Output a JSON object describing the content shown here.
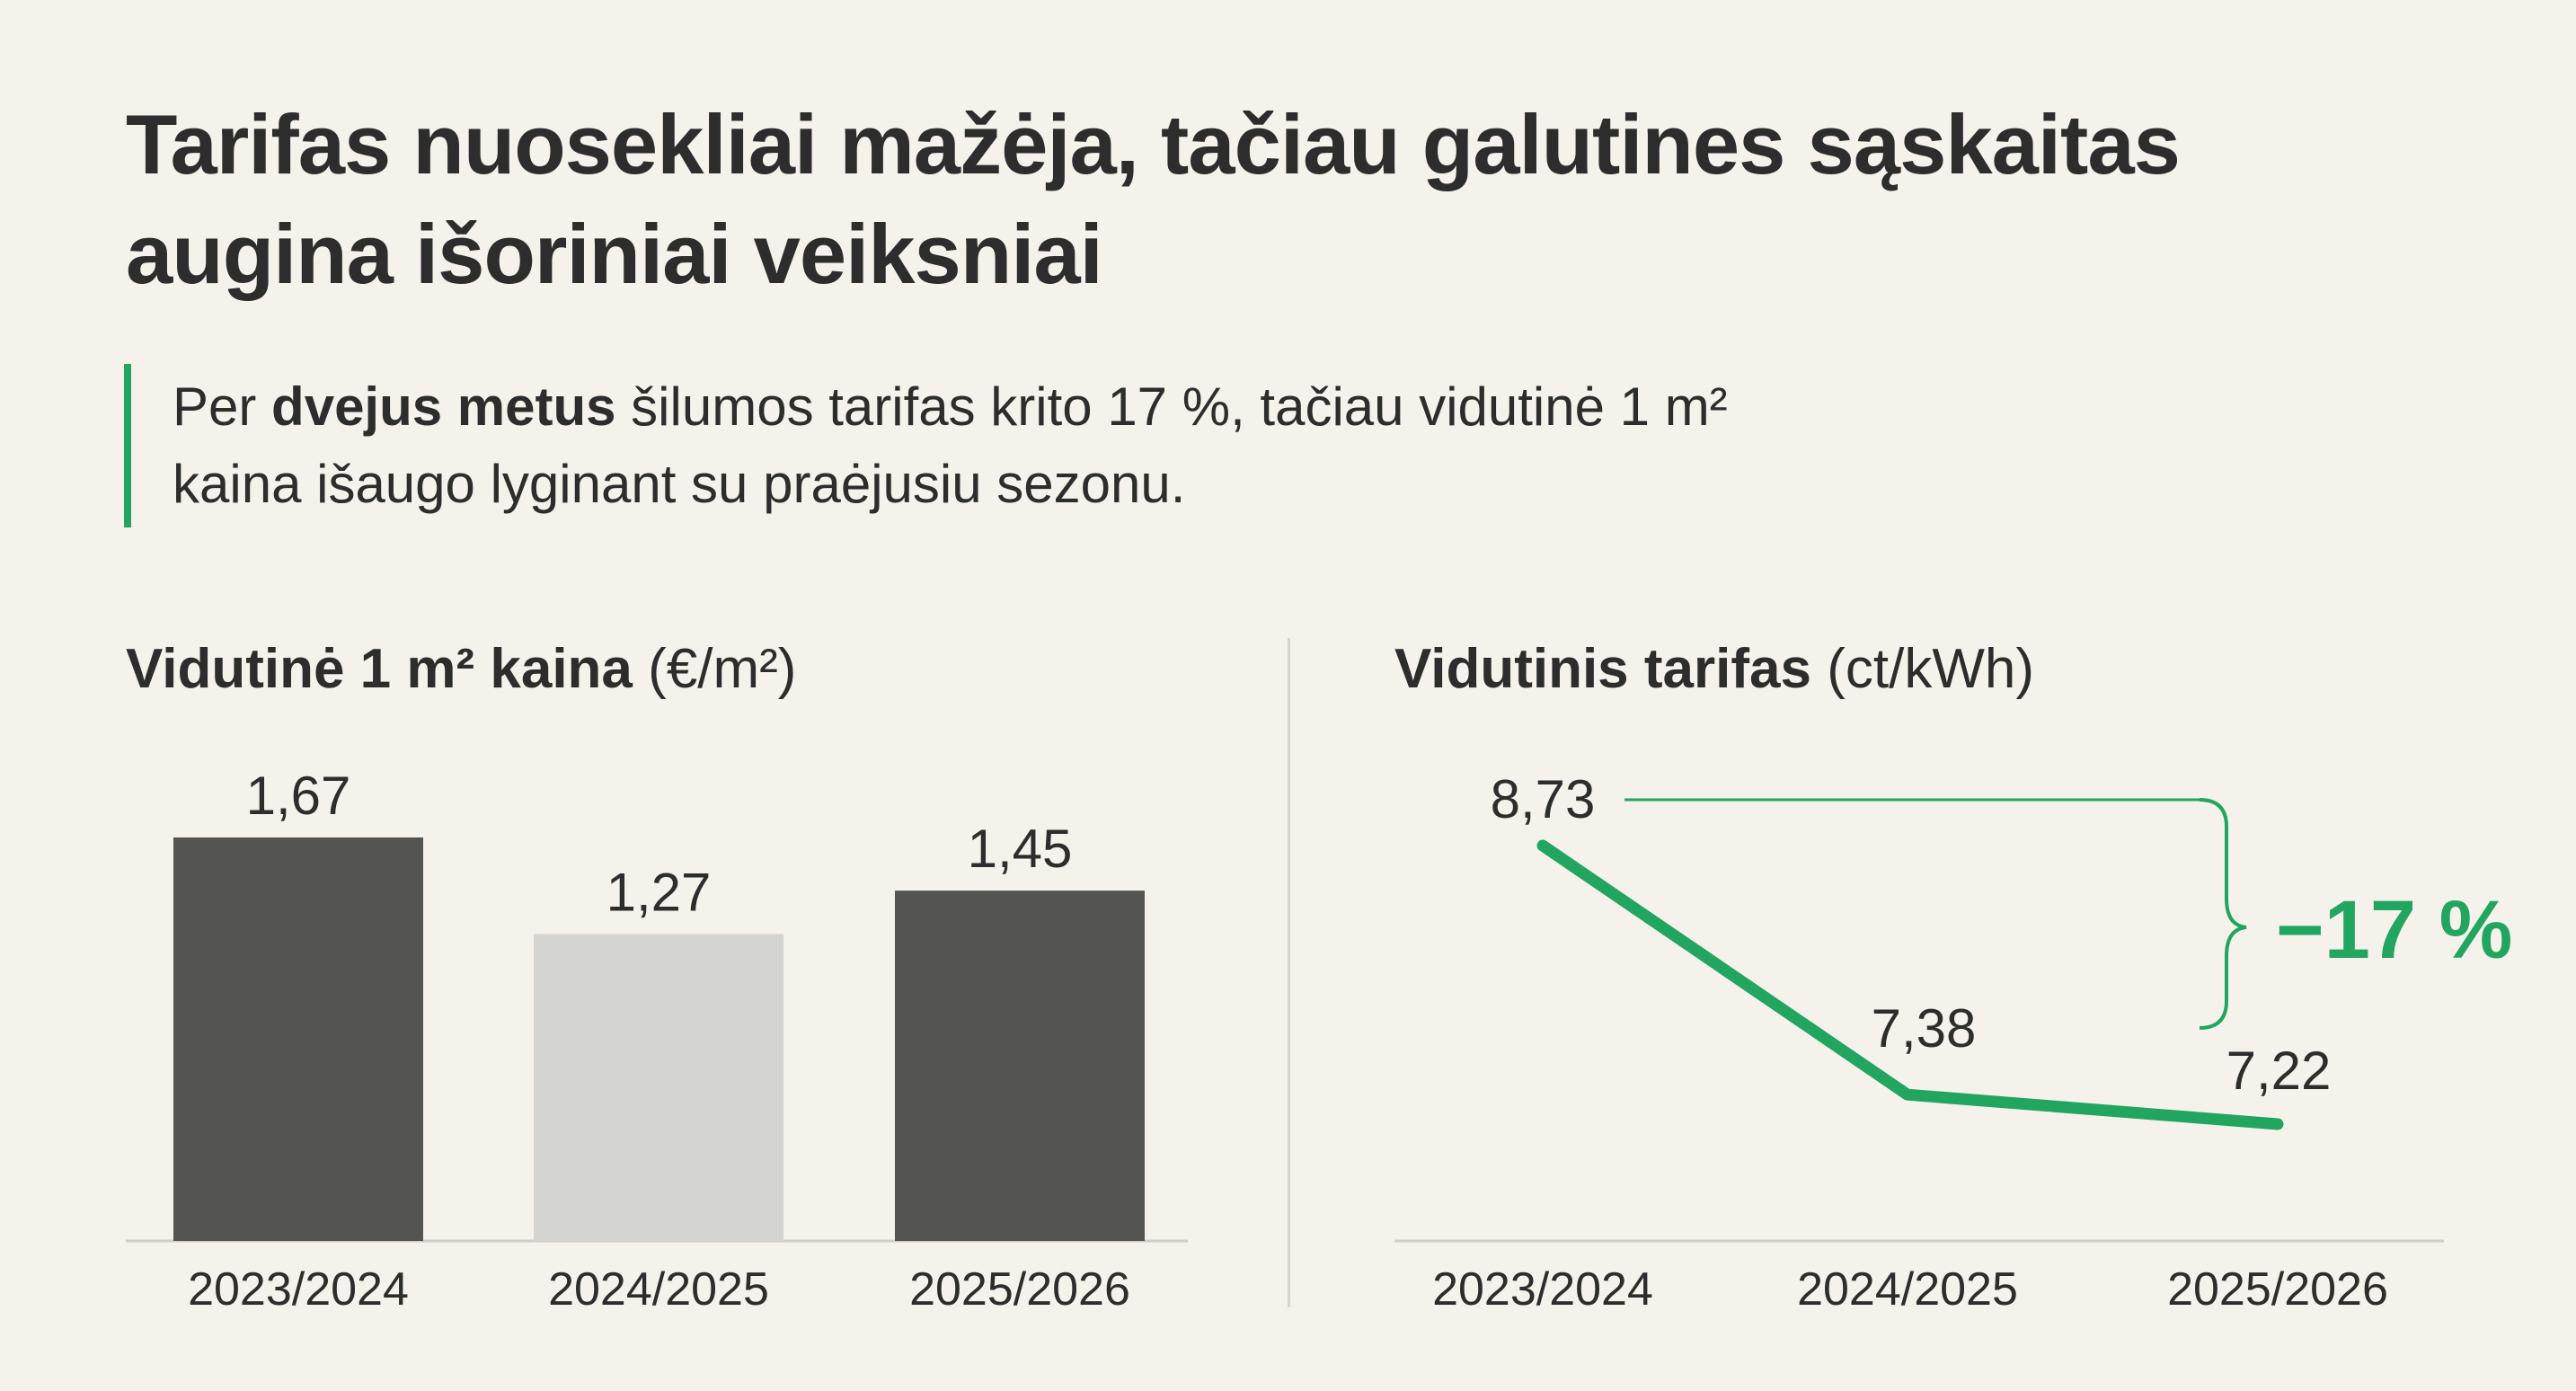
{
  "header": {
    "title_line1": "Tarifas nuosekliai mažėja, tačiau galutines sąskaitas",
    "title_line2": "augina išoriniai veiksniai"
  },
  "lead": {
    "line1_pre": "Per ",
    "line1_bold": "dvejus metus",
    "line1_post": " šilumos tarifas krito 17 %, tačiau vidutinė 1 m²",
    "line2": "kaina išaugo lyginant su praėjusiu sezonu."
  },
  "colors": {
    "accent": "#22a55f",
    "bar_dark": "#545553",
    "bar_light": "#d4d4d2",
    "text": "#2d2d2d",
    "background": "#f4f2eb"
  },
  "chart_data": [
    {
      "type": "bar",
      "title_bold": "Vidutinė 1 m² kaina",
      "title_unit": "(€/m²)",
      "categories": [
        "2023/2024",
        "2024/2025",
        "2025/2026"
      ],
      "values": [
        1.67,
        1.27,
        1.45
      ],
      "value_labels": [
        "1,67",
        "1,27",
        "1,45"
      ],
      "bar_colors": [
        "#545553",
        "#d4d4d2",
        "#545553"
      ],
      "ylim": [
        0,
        1.67
      ],
      "grid": false
    },
    {
      "type": "line",
      "title_bold": "Vidutinis tarifas",
      "title_unit": "(ct/kWh)",
      "categories": [
        "2023/2024",
        "2024/2025",
        "2025/2026"
      ],
      "values": [
        8.73,
        7.38,
        7.22
      ],
      "value_labels": [
        "8,73",
        "7,38",
        "7,22"
      ],
      "ylim": [
        7.22,
        8.73
      ],
      "line_color": "#22a55f",
      "grid": false,
      "annotation": {
        "text": "−17 %",
        "color": "#22a55f"
      }
    }
  ]
}
